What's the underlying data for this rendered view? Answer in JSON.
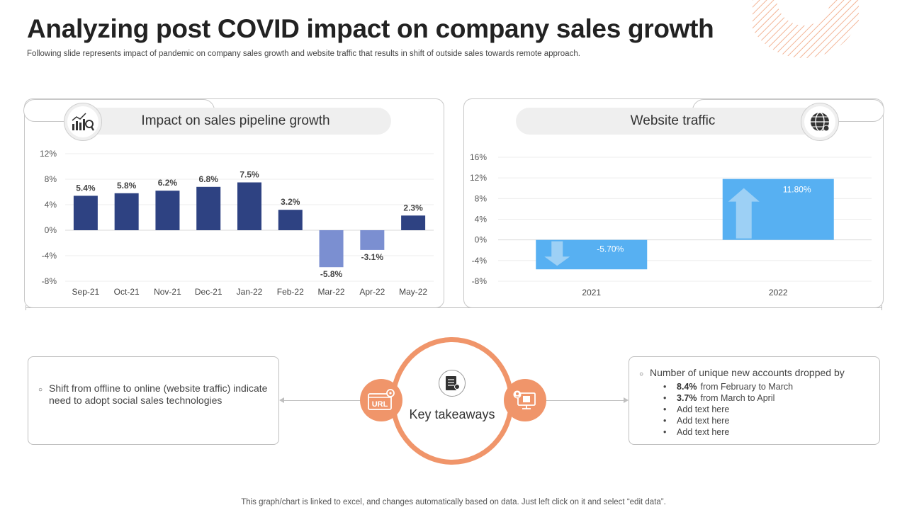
{
  "header": {
    "title": "Analyzing post COVID impact on company sales growth",
    "subtitle": "Following slide represents impact of pandemic on company sales growth and website traffic that results in shift of outside sales towards remote approach."
  },
  "colors": {
    "bar_positive": "#2e4282",
    "bar_negative": "#7b8fd1",
    "traffic_bar": "#57b0f2",
    "traffic_arrow": "#a9d6f6",
    "accent": "#f0956a"
  },
  "icons": {
    "pipeline": "bar-chart-magnifier-icon",
    "traffic": "globe-icon",
    "center": "server-document-icon",
    "left_badge": "url-gear-icon",
    "right_badge": "user-monitor-icon"
  },
  "panels": {
    "pipeline": {
      "title": "Impact on sales pipeline growth"
    },
    "traffic": {
      "title": "Website traffic"
    }
  },
  "chart_data": [
    {
      "type": "bar",
      "title": "Impact on sales pipeline growth",
      "categories": [
        "Sep-21",
        "Oct-21",
        "Nov-21",
        "Dec-21",
        "Jan-22",
        "Feb-22",
        "Mar-22",
        "Apr-22",
        "May-22"
      ],
      "values": [
        5.4,
        5.8,
        6.2,
        6.8,
        7.5,
        3.2,
        -5.8,
        -3.1,
        2.3
      ],
      "data_labels": [
        "5.4%",
        "5.8%",
        "6.2%",
        "6.8%",
        "7.5%",
        "3.2%",
        "-5.8%",
        "-3.1%",
        "2.3%"
      ],
      "yticks": [
        12,
        8,
        4,
        0,
        -4,
        -8
      ],
      "ytick_labels": [
        "12%",
        "8%",
        "4%",
        "0%",
        "-4%",
        "-8%"
      ],
      "ylim": [
        -8,
        12
      ],
      "grid": true,
      "xlabel": "",
      "ylabel": ""
    },
    {
      "type": "bar",
      "title": "Website traffic",
      "categories": [
        "2021",
        "2022"
      ],
      "values": [
        -5.7,
        11.8
      ],
      "data_labels": [
        "-5.70%",
        "11.80%"
      ],
      "yticks": [
        16,
        12,
        8,
        4,
        0,
        -4,
        -8
      ],
      "ytick_labels": [
        "16%",
        "12%",
        "8%",
        "4%",
        "0%",
        "-4%",
        "-8%"
      ],
      "ylim": [
        -8,
        16
      ],
      "grid": true,
      "xlabel": "",
      "ylabel": ""
    }
  ],
  "takeaways": {
    "center_label": "Key takeaways",
    "left_badge_text": "URL",
    "left_text": "Shift from offline to online (website traffic) indicate need to adopt social sales technologies",
    "right_heading": "Number of unique new accounts dropped by",
    "right_items": [
      {
        "bold": "8.4%",
        "text": "from February to March"
      },
      {
        "bold": "3.7%",
        "text": "from March to April"
      },
      {
        "bold": "",
        "text": "Add text here"
      },
      {
        "bold": "",
        "text": "Add text here"
      },
      {
        "bold": "",
        "text": "Add text here"
      }
    ]
  },
  "footer": "This graph/chart is linked to excel, and changes automatically based on data. Just left click on it and select “edit data”."
}
